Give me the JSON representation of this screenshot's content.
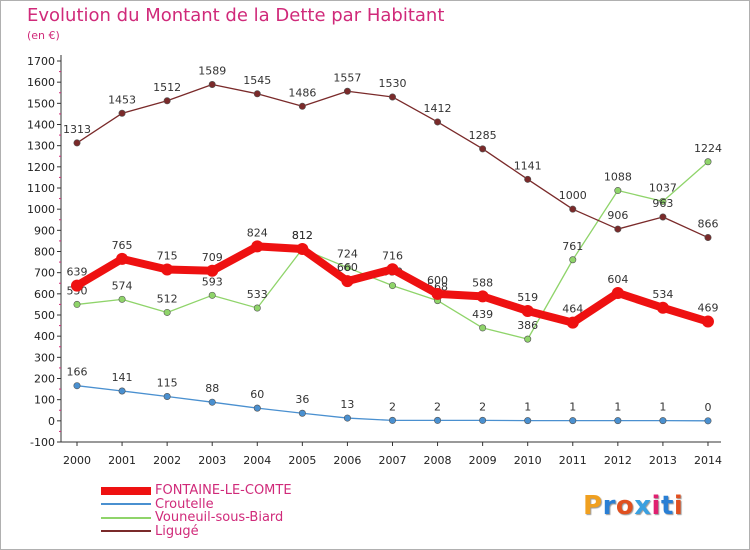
{
  "title": "Evolution du Montant de la Dette par Habitant",
  "subtitle": "(en €)",
  "logo_text": "Proxiti",
  "logo_colors": [
    "#f0a020",
    "#2a7fd4",
    "#e05020",
    "#3aa0e0",
    "#e02070",
    "#2a7fd4",
    "#e05020"
  ],
  "chart_data": {
    "type": "line",
    "x": [
      "2000",
      "2001",
      "2002",
      "2003",
      "2004",
      "2005",
      "2006",
      "2007",
      "2008",
      "2009",
      "2010",
      "2011",
      "2012",
      "2013",
      "2014"
    ],
    "ylim": [
      -100,
      1700
    ],
    "yticks": [
      -100,
      0,
      100,
      200,
      300,
      400,
      500,
      600,
      700,
      800,
      900,
      1000,
      1100,
      1200,
      1300,
      1400,
      1500,
      1600,
      1700
    ],
    "grid": false,
    "legend_position": "bottom-left",
    "series": [
      {
        "name": "Croutelle",
        "color": "#4a90d0",
        "values": [
          166,
          141,
          115,
          88,
          60,
          36,
          13,
          2,
          2,
          2,
          1,
          1,
          1,
          1,
          0
        ]
      },
      {
        "name": "Vouneuil-sous-Biard",
        "color": "#8fd46a",
        "values": [
          550,
          574,
          512,
          593,
          533,
          812,
          724,
          639,
          568,
          439,
          386,
          761,
          1088,
          1037,
          1224
        ]
      },
      {
        "name": "Ligugé",
        "color": "#7a2a2a",
        "values": [
          1313,
          1453,
          1512,
          1589,
          1545,
          1486,
          1557,
          1530,
          1412,
          1285,
          1141,
          1000,
          906,
          963,
          866
        ]
      },
      {
        "name": "FONTAINE-LE-COMTE",
        "color": "#ee1111",
        "values": [
          639,
          765,
          715,
          709,
          824,
          812,
          660,
          716,
          600,
          588,
          519,
          464,
          604,
          534,
          469
        ]
      }
    ],
    "legend_order": [
      "FONTAINE-LE-COMTE",
      "Croutelle",
      "Vouneuil-sous-Biard",
      "Ligugé"
    ]
  }
}
